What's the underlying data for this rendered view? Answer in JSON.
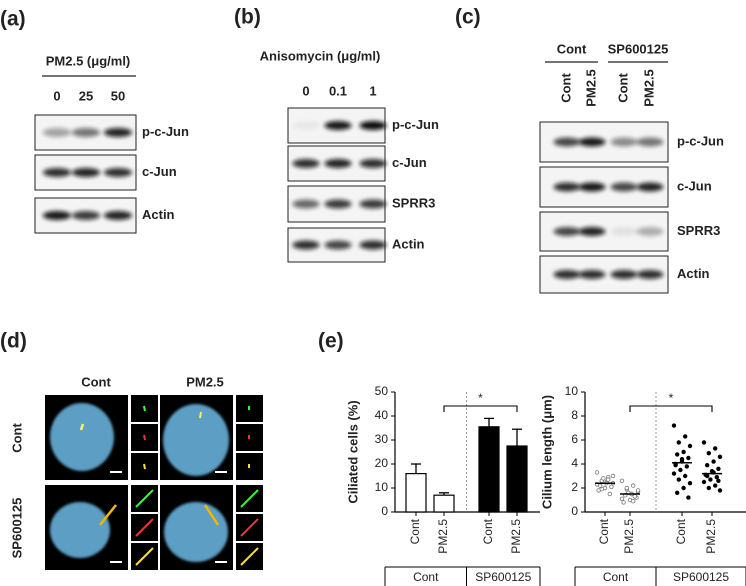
{
  "blots": [
    {
      "label": "(a)",
      "header": "PM2.5 (μg/ml)",
      "lanes": [
        "0",
        "25",
        "50"
      ],
      "rows": [
        "p-c-Jun",
        "c-Jun",
        "Actin"
      ]
    },
    {
      "label": "(b)",
      "header": "Anisomycin (μg/ml)",
      "lanes": [
        "0",
        "0.1",
        "1"
      ],
      "rows": [
        "p-c-Jun",
        "c-Jun",
        "SPRR3",
        "Actin"
      ]
    },
    {
      "label": "(c)",
      "groups": [
        "Cont",
        "SP600125"
      ],
      "lanes": [
        "Cont",
        "PM2.5",
        "Cont",
        "PM2.5"
      ],
      "rows": [
        "p-c-Jun",
        "c-Jun",
        "SPRR3",
        "Actin"
      ]
    }
  ],
  "images": {
    "label": "(d)",
    "columns": [
      "Cont",
      "PM2.5"
    ],
    "rows": [
      "Cont",
      "SP600125"
    ]
  },
  "panel_e": {
    "label": "(e)"
  },
  "chart_data": [
    {
      "type": "bar",
      "ylabel": "Ciliated cells (%)",
      "categories": [
        "Cont",
        "PM2.5",
        "Cont",
        "PM2.5"
      ],
      "values": [
        16,
        7,
        35.5,
        27.5
      ],
      "errors": [
        4,
        1,
        3.5,
        7
      ],
      "colors": [
        "#ffffff",
        "#ffffff",
        "#000000",
        "#000000"
      ],
      "groups": [
        {
          "label": "Cont",
          "span": 2
        },
        {
          "label": "SP600125",
          "span": 2
        }
      ],
      "ylim": [
        0,
        50
      ],
      "yticks": [
        0,
        10,
        20,
        30,
        40,
        50
      ],
      "significance": {
        "label": "*",
        "between": [
          1,
          3
        ]
      }
    },
    {
      "type": "strip",
      "ylabel": "Cilium length (μm)",
      "categories": [
        "Cont",
        "PM2.5",
        "Cont",
        "PM2.5"
      ],
      "points": [
        [
          3.3,
          2.9,
          2.6,
          2.4,
          2.5,
          2.2,
          2.1,
          2.0,
          1.8,
          1.5,
          2.8,
          2.3,
          2.7,
          1.9,
          3.0,
          2.4
        ],
        [
          2.6,
          2.2,
          1.9,
          1.7,
          1.5,
          1.4,
          1.2,
          1.0,
          0.8,
          1.3,
          1.6,
          1.1,
          0.9,
          2.0,
          1.8,
          1.5
        ],
        [
          7.2,
          6.3,
          5.8,
          5.5,
          5.0,
          4.8,
          4.5,
          4.2,
          4.0,
          3.8,
          3.5,
          3.2,
          3.0,
          2.7,
          2.4,
          2.0,
          1.6,
          1.2,
          4.4,
          3.9
        ],
        [
          5.8,
          5.3,
          4.9,
          4.6,
          4.2,
          3.9,
          3.6,
          3.4,
          3.1,
          2.9,
          2.7,
          2.5,
          2.2,
          2.0,
          1.8,
          3.3,
          3.0,
          2.6
        ]
      ],
      "means": [
        2.4,
        1.5,
        4.1,
        3.2
      ],
      "markers": [
        "open",
        "open",
        "filled",
        "filled"
      ],
      "groups": [
        {
          "label": "Cont",
          "span": 2
        },
        {
          "label": "SP600125",
          "span": 2
        }
      ],
      "ylim": [
        0,
        10
      ],
      "yticks": [
        0,
        2,
        4,
        6,
        8,
        10
      ],
      "significance": {
        "label": "*",
        "between": [
          1,
          3
        ]
      }
    }
  ]
}
